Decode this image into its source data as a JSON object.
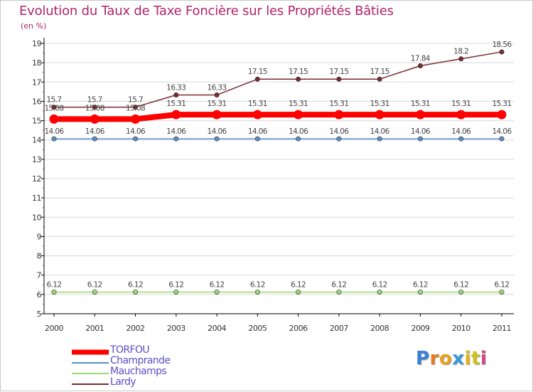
{
  "title": "Evolution du Taux de Taxe Foncière sur les Propriétés Bâties",
  "unit_label": "(en %)",
  "logo": {
    "letters": [
      "P",
      "r",
      "o",
      "x",
      "i",
      "t",
      "i"
    ],
    "colors": [
      "#3a7fd8",
      "#e87a1e",
      "#e8a21e",
      "#3a9ad8",
      "#e2b21c",
      "#d0c21a",
      "#d04a8a"
    ]
  },
  "colors": {
    "axis": "#000000",
    "grid": "#d8d8d8",
    "title": "#b0246a",
    "tick_text": "#333333",
    "label_text": "#444444"
  },
  "chart_data": {
    "type": "line",
    "title": "Evolution du Taux de Taxe Foncière sur les Propriétés Bâties",
    "ylabel": "(en %)",
    "xlabel": "",
    "x": [
      "2000",
      "2001",
      "2002",
      "2003",
      "2004",
      "2005",
      "2006",
      "2007",
      "2008",
      "2009",
      "2010",
      "2011"
    ],
    "ylim": [
      5,
      19
    ],
    "yticks": [
      "5",
      "6",
      "7",
      "8",
      "9",
      "10",
      "11",
      "12",
      "13",
      "14",
      "15",
      "16",
      "17",
      "18",
      "19"
    ],
    "grid": "horizontal",
    "legend_position": "bottom-left",
    "series": [
      {
        "name": "Lardy",
        "color": "#7a2a30",
        "values": [
          15.7,
          15.7,
          15.7,
          16.33,
          16.33,
          17.15,
          17.15,
          17.15,
          17.15,
          17.84,
          18.2,
          18.56
        ],
        "labels": [
          "15.7",
          "15.7",
          "15.7",
          "16.33",
          "16.33",
          "17.15",
          "17.15",
          "17.15",
          "17.15",
          "17.84",
          "18.2",
          "18.56"
        ]
      },
      {
        "name": "TORFOU",
        "color": "#ff0000",
        "values": [
          15.08,
          15.08,
          15.08,
          15.31,
          15.31,
          15.31,
          15.31,
          15.31,
          15.31,
          15.31,
          15.31,
          15.31
        ],
        "labels": [
          "15.08",
          "15.08",
          "15.08",
          "15.31",
          "15.31",
          "15.31",
          "15.31",
          "15.31",
          "15.31",
          "15.31",
          "15.31",
          "15.31"
        ]
      },
      {
        "name": "Champrande",
        "color": "#5a8ec8",
        "values": [
          14.06,
          14.06,
          14.06,
          14.06,
          14.06,
          14.06,
          14.06,
          14.06,
          14.06,
          14.06,
          14.06,
          14.06
        ],
        "labels": [
          "14.06",
          "14.06",
          "14.06",
          "14.06",
          "14.06",
          "14.06",
          "14.06",
          "14.06",
          "14.06",
          "14.06",
          "14.06",
          "14.06"
        ]
      },
      {
        "name": "Mauchamps",
        "color": "#9ad870",
        "values": [
          6.12,
          6.12,
          6.12,
          6.12,
          6.12,
          6.12,
          6.12,
          6.12,
          6.12,
          6.12,
          6.12,
          6.12
        ],
        "labels": [
          "6.12",
          "6.12",
          "6.12",
          "6.12",
          "6.12",
          "6.12",
          "6.12",
          "6.12",
          "6.12",
          "6.12",
          "6.12",
          "6.12"
        ]
      }
    ],
    "legend": [
      "TORFOU",
      "Champrande",
      "Mauchamps",
      "Lardy"
    ]
  }
}
